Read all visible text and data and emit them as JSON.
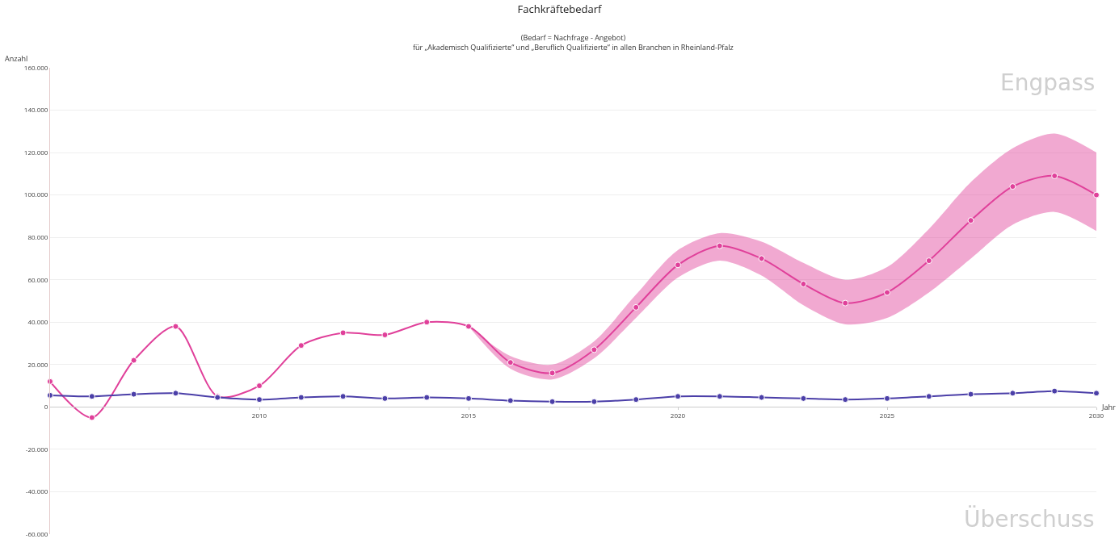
{
  "chart_data": {
    "type": "line",
    "title": "Fachkräftebedarf",
    "subtitle": "(Bedarf = Nachfrage - Angebot)\nfür „Akademisch Qualifizierte“ und „Beruflich Qualifizierte“ in allen Branchen in Rheinland-Pfalz",
    "xlabel": "Jahr",
    "ylabel": "Anzahl",
    "x": [
      2005,
      2006,
      2007,
      2008,
      2009,
      2010,
      2011,
      2012,
      2013,
      2014,
      2015,
      2016,
      2017,
      2018,
      2019,
      2020,
      2021,
      2022,
      2023,
      2024,
      2025,
      2026,
      2027,
      2028,
      2029,
      2030
    ],
    "series": [
      {
        "color": "#e0409a",
        "values": [
          12000,
          -5000,
          22000,
          38000,
          5000,
          10000,
          29000,
          35000,
          34000,
          40000,
          38000,
          21000,
          16000,
          27000,
          47000,
          67000,
          76000,
          70000,
          58000,
          49000,
          54000,
          69000,
          88000,
          104000,
          109000,
          100000
        ],
        "lower": [
          null,
          null,
          null,
          null,
          null,
          null,
          null,
          null,
          null,
          null,
          38000,
          18000,
          13000,
          23000,
          42000,
          61000,
          69000,
          62000,
          48000,
          39000,
          42000,
          54000,
          70000,
          86000,
          92000,
          83000
        ],
        "upper": [
          null,
          null,
          null,
          null,
          null,
          null,
          null,
          null,
          null,
          null,
          38000,
          24000,
          20000,
          31000,
          53000,
          74000,
          82000,
          78000,
          68000,
          60000,
          66000,
          84000,
          106000,
          122000,
          129000,
          120000
        ]
      },
      {
        "color": "#4b3fa8",
        "values": [
          5500,
          5000,
          6000,
          6500,
          4500,
          3500,
          4500,
          5000,
          4000,
          4500,
          4000,
          3000,
          2500,
          2500,
          3500,
          5000,
          5000,
          4500,
          4000,
          3500,
          4000,
          5000,
          6000,
          6500,
          7500,
          6500
        ]
      }
    ],
    "xlim": [
      2005,
      2030
    ],
    "xticks": [
      2010,
      2015,
      2020,
      2025,
      2030
    ],
    "ylim": [
      -60000,
      160000
    ],
    "yticks": [
      {
        "value": -60000,
        "label": "-60.000"
      },
      {
        "value": -40000,
        "label": "-40.000"
      },
      {
        "value": -20000,
        "label": "-20.000"
      },
      0,
      {
        "value": 20000,
        "label": "20.000"
      },
      {
        "value": 40000,
        "label": "40.000"
      },
      {
        "value": 60000,
        "label": "60.000"
      },
      {
        "value": 80000,
        "label": "80.000"
      },
      {
        "value": 100000,
        "label": "100.000"
      },
      {
        "value": 120000,
        "label": "120.000"
      },
      {
        "value": 140000,
        "label": "140.000"
      },
      {
        "value": 160000,
        "label": "160.000"
      }
    ],
    "grid": "y",
    "marker": "circle",
    "line_style": "solid",
    "annotations": [
      "Engpass",
      "Überschuss"
    ]
  }
}
